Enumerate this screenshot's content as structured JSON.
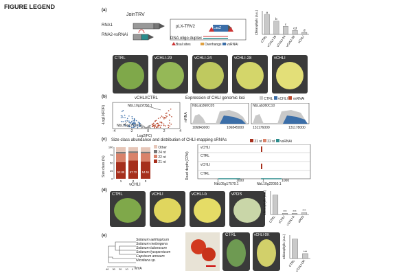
{
  "page_title": "FIGURE LEGEND",
  "panel_a": {
    "label": "(a)",
    "join_trv": "JoinTRV",
    "rna1": "RNA1",
    "rna2": "RNA2-vsRNAi",
    "plx": "pLX-TRV2",
    "lacz": "LacZ",
    "duplex": "DNA oligo duplex",
    "legend": [
      "BsaI sites",
      "Overhangs",
      "vsRNAi"
    ],
    "chart": {
      "ylabel": "Chlorophylls (a.u.)",
      "categories": [
        "CTRL",
        "vCHLI-29",
        "vCHLI-24",
        "vCHLI-28",
        "vCHLI"
      ],
      "values": [
        3.0,
        2.0,
        1.2,
        0.6,
        0.3
      ],
      "letters": [
        "a",
        "b",
        "c",
        "cd",
        "d"
      ],
      "ylim": [
        0,
        3.5
      ]
    },
    "leaves": [
      "CTRL",
      "vCHLI-29",
      "vCHLI-24",
      "vCHLI-28",
      "vCHLI"
    ]
  },
  "panel_b": {
    "label": "(b)",
    "volcano_title": "vCHLI/CTRL",
    "gene1": "NbL10g22050.1",
    "gene2": "NbL05g17570.1",
    "ylabel": "-Log10(FDR)",
    "xlabel": "Log2(FC)",
    "xticks": [
      "-4",
      "-2",
      "0",
      "2",
      "4"
    ],
    "yticks": [
      "0",
      "1",
      "2"
    ],
    "expr_title": "Expression of CHLI genomic loci",
    "legend": [
      "CTRL",
      "vCHLI",
      "vsRNAi"
    ],
    "loci": [
      "NbLab360C05",
      "NbLab360C10"
    ],
    "axis_left": [
      "106843000",
      "106845000"
    ],
    "axis_right": [
      "131176000",
      "131178000"
    ],
    "mrna": "mRNA"
  },
  "panel_c": {
    "label": "(c)",
    "title": "Size class abundance and distribution of CHLI-mapping sRNAs",
    "ylabel": "Size class (%)",
    "yticks": [
      "0",
      "25",
      "50",
      "75",
      "100"
    ],
    "legend": [
      "Other",
      "24 nt",
      "22 nt",
      "21 nt"
    ],
    "xlabels": [
      "1",
      "2",
      "3"
    ],
    "group": "vCHLI",
    "bars": [
      {
        "n21": 52.85,
        "n22": 27.0,
        "n24": 5,
        "other": 15
      },
      {
        "n21": 57.72,
        "n22": 24.0,
        "n24": 5,
        "other": 13
      },
      {
        "n21": 54.51,
        "n22": 26.0,
        "n24": 5,
        "other": 14
      }
    ],
    "track_legend": [
      "21 nt",
      "22 nt",
      "vsRNAi"
    ],
    "track_ylabel": "Read depth (CPM)",
    "tracks": [
      "vCHLI",
      "CTRL",
      "vCHLI",
      "CTRL"
    ],
    "gene_left": "NbL05g17570.1",
    "gene_right": "NbL10g22050.1",
    "tick1": "1",
    "tick1000": "1000"
  },
  "panel_d": {
    "label": "(d)",
    "leaves": [
      "CTRL",
      "vCHLI",
      "vCHLI-b",
      "vPDS"
    ],
    "chart": {
      "ylabel": "Chlorophylls (a.u.)",
      "categories": [
        "CTRL",
        "vCHLI",
        "vCHLI-b",
        "vPDS"
      ],
      "values": [
        1.0,
        0.06,
        0.06,
        0.1
      ],
      "stars": [
        "",
        "***",
        "***",
        "***"
      ],
      "ylim": [
        0,
        1.2
      ]
    }
  },
  "panel_e": {
    "label": "(e)",
    "species": [
      "Solanum aethiopicum",
      "Solanum melongena",
      "Solanum tuberosum",
      "Solanum lycopersicum",
      "Capsicum annuum",
      "Nicotiana sp."
    ],
    "mya": "MYA",
    "mya_ticks": [
      "40",
      "30",
      "20",
      "10",
      "0"
    ],
    "leaves": [
      "CTRL",
      "vCHLI-DK"
    ],
    "chart": {
      "ylabel": "Chlorophylls (a.u.)",
      "categories": [
        "CTRL",
        "vCHLI-DK"
      ],
      "values": [
        1.0,
        0.25
      ],
      "stars": [
        "",
        "***"
      ],
      "ylim": [
        0,
        1.2
      ]
    }
  },
  "colors": {
    "leaf_green": "#7fa84a",
    "leaf_yellow": "#d9d56a",
    "bar_grey": "#c9c9c9",
    "red": "#b8452a",
    "blue": "#3b6ea8"
  }
}
